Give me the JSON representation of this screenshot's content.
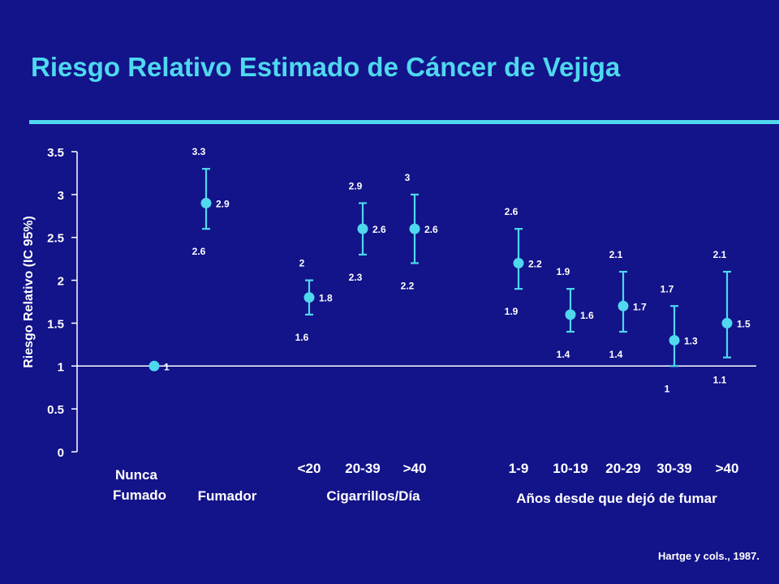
{
  "title": "Riesgo Relativo Estimado de Cáncer de Vejiga",
  "citation": "Hartge y cols., 1987.",
  "colors": {
    "background": "#13138a",
    "accent": "#4fd8ee",
    "text": "#ffffff"
  },
  "groups": {
    "nunca_line1": "Nunca",
    "nunca_line2": "Fumado",
    "fumador": "Fumador",
    "cigarrillos": "Cigarrillos/Día",
    "anos": "Años desde que dejó de fumar"
  },
  "chart_data": {
    "type": "scatter",
    "title": "",
    "ylabel": "Riesgo Relativo (IC 95%)",
    "ylim": [
      0,
      3.5
    ],
    "yticks": [
      "0",
      "0.5",
      "1",
      "1.5",
      "2",
      "2.5",
      "3",
      "3.5"
    ],
    "reference_line": 1,
    "points": [
      {
        "category": "",
        "value": 1,
        "value_label": "1"
      },
      {
        "category": "",
        "value": 2.9,
        "lower": 2.6,
        "upper": 3.3,
        "value_label": "2.9",
        "lower_label": "2.6",
        "upper_label": "3.3"
      },
      {
        "category": "<20",
        "value": 1.8,
        "lower": 1.6,
        "upper": 2.0,
        "value_label": "1.8",
        "lower_label": "1.6",
        "upper_label": "2"
      },
      {
        "category": "20-39",
        "value": 2.6,
        "lower": 2.3,
        "upper": 2.9,
        "value_label": "2.6",
        "lower_label": "2.3",
        "upper_label": "2.9"
      },
      {
        "category": ">40",
        "value": 2.6,
        "lower": 2.2,
        "upper": 3.0,
        "value_label": "2.6",
        "lower_label": "2.2",
        "upper_label": "3"
      },
      {
        "category": "1-9",
        "value": 2.2,
        "lower": 1.9,
        "upper": 2.6,
        "value_label": "2.2",
        "lower_label": "1.9",
        "upper_label": "2.6"
      },
      {
        "category": "10-19",
        "value": 1.6,
        "lower": 1.4,
        "upper": 1.9,
        "value_label": "1.6",
        "lower_label": "1.4",
        "upper_label": "1.9"
      },
      {
        "category": "20-29",
        "value": 1.7,
        "lower": 1.4,
        "upper": 2.1,
        "value_label": "1.7",
        "lower_label": "1.4",
        "upper_label": "2.1"
      },
      {
        "category": "30-39",
        "value": 1.3,
        "lower": 1.0,
        "upper": 1.7,
        "value_label": "1.3",
        "lower_label": "1",
        "upper_label": "1.7"
      },
      {
        "category": ">40",
        "value": 1.5,
        "lower": 1.1,
        "upper": 2.1,
        "value_label": "1.5",
        "lower_label": "1.1",
        "upper_label": "2.1"
      }
    ]
  }
}
